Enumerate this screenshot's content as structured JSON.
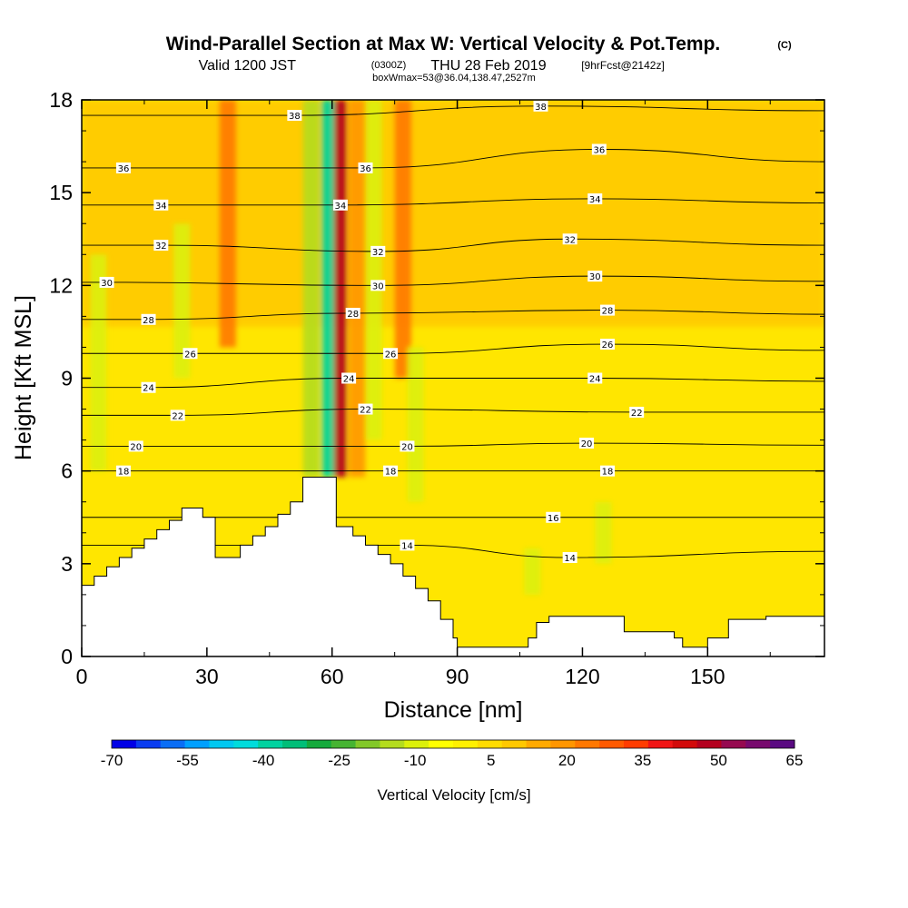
{
  "title": {
    "main": "Wind-Parallel Section at Max W: Vertical Velocity & Pot.Temp.",
    "main_tag": "(C)",
    "valid_prefix": "Valid 1200 JST",
    "valid_utc": "(0300Z)",
    "valid_date": "THU 28 Feb 2019",
    "fcst": "[9hrFcst@2142z]",
    "box": "boxWmax=53@36.04,138.47,2527m"
  },
  "chart_data": {
    "type": "heatmap",
    "xlabel": "Distance [nm]",
    "ylabel": "Height [Kft MSL]",
    "xlim": [
      0,
      178
    ],
    "ylim": [
      0,
      18
    ],
    "x_ticks": [
      0,
      30,
      60,
      90,
      120,
      150
    ],
    "y_ticks": [
      0,
      3,
      6,
      9,
      12,
      15,
      18
    ],
    "colorbar": {
      "title": "Vertical Velocity [cm/s]",
      "min": -70,
      "max": 65,
      "step": 5,
      "tick_labels": [
        "-70",
        "-55",
        "-40",
        "-25",
        "-10",
        "5",
        "20",
        "35",
        "50",
        "65"
      ],
      "colors": [
        "#0000e6",
        "#0a3cf0",
        "#0a6ef5",
        "#00a0ff",
        "#00c8f0",
        "#00dcdc",
        "#00d2a0",
        "#00be78",
        "#14aa3c",
        "#46b432",
        "#82c828",
        "#b4dc1e",
        "#dcf00a",
        "#ffff00",
        "#fff000",
        "#ffdc00",
        "#ffc800",
        "#ffaa00",
        "#ff9600",
        "#ff7800",
        "#ff5a00",
        "#ff3c00",
        "#f01414",
        "#d20a0a",
        "#b4001e",
        "#960a50",
        "#780a6e",
        "#5a0a82"
      ]
    },
    "vertical_velocity_features": [
      {
        "x": 59,
        "y0": 5.8,
        "y1": 18,
        "value": -40
      },
      {
        "x": 55,
        "y0": 5.8,
        "y1": 18,
        "value": -15
      },
      {
        "x": 62,
        "y0": 5.8,
        "y1": 18,
        "value": 50
      },
      {
        "x": 66,
        "y0": 5.8,
        "y1": 18,
        "value": 20
      },
      {
        "x": 70,
        "y0": 7,
        "y1": 18,
        "value": -10
      },
      {
        "x": 77,
        "y0": 9,
        "y1": 18,
        "value": 25
      },
      {
        "x": 35,
        "y0": 10,
        "y1": 18,
        "value": 25
      },
      {
        "x": 24,
        "y0": 9,
        "y1": 14,
        "value": -8
      },
      {
        "x": 4,
        "y0": 6,
        "y1": 13,
        "value": -8
      },
      {
        "x": 80,
        "y0": 5,
        "y1": 10,
        "value": -8
      },
      {
        "x": 125,
        "y0": 3,
        "y1": 5,
        "value": -8
      },
      {
        "x": 108,
        "y0": 2,
        "y1": 3.5,
        "value": -8
      }
    ],
    "theta_labels": [
      {
        "value": "38",
        "x": 51,
        "y": 17.5
      },
      {
        "value": "38",
        "x": 110,
        "y": 17.8
      },
      {
        "value": "36",
        "x": 10,
        "y": 15.8
      },
      {
        "value": "36",
        "x": 68,
        "y": 15.8
      },
      {
        "value": "36",
        "x": 124,
        "y": 16.4
      },
      {
        "value": "34",
        "x": 19,
        "y": 14.6
      },
      {
        "value": "34",
        "x": 62,
        "y": 14.6
      },
      {
        "value": "34",
        "x": 123,
        "y": 14.8
      },
      {
        "value": "32",
        "x": 19,
        "y": 13.3
      },
      {
        "value": "32",
        "x": 71,
        "y": 13.1
      },
      {
        "value": "32",
        "x": 117,
        "y": 13.5
      },
      {
        "value": "30",
        "x": 6,
        "y": 12.1
      },
      {
        "value": "30",
        "x": 71,
        "y": 12.0
      },
      {
        "value": "30",
        "x": 123,
        "y": 12.3
      },
      {
        "value": "28",
        "x": 16,
        "y": 10.9
      },
      {
        "value": "28",
        "x": 65,
        "y": 11.1
      },
      {
        "value": "28",
        "x": 126,
        "y": 11.2
      },
      {
        "value": "26",
        "x": 26,
        "y": 9.8
      },
      {
        "value": "26",
        "x": 74,
        "y": 9.8
      },
      {
        "value": "26",
        "x": 126,
        "y": 10.1
      },
      {
        "value": "24",
        "x": 16,
        "y": 8.7
      },
      {
        "value": "24",
        "x": 64,
        "y": 9.0
      },
      {
        "value": "24",
        "x": 123,
        "y": 9.0
      },
      {
        "value": "22",
        "x": 23,
        "y": 7.8
      },
      {
        "value": "22",
        "x": 68,
        "y": 8.0
      },
      {
        "value": "22",
        "x": 133,
        "y": 7.9
      },
      {
        "value": "20",
        "x": 13,
        "y": 6.8
      },
      {
        "value": "20",
        "x": 78,
        "y": 6.8
      },
      {
        "value": "20",
        "x": 121,
        "y": 6.9
      },
      {
        "value": "18",
        "x": 10,
        "y": 6.0
      },
      {
        "value": "18",
        "x": 74,
        "y": 6.0
      },
      {
        "value": "18",
        "x": 126,
        "y": 6.0
      },
      {
        "value": "16",
        "x": 113,
        "y": 4.5
      },
      {
        "value": "14",
        "x": 78,
        "y": 3.6
      },
      {
        "value": "14",
        "x": 117,
        "y": 3.2
      }
    ],
    "terrain": [
      [
        0,
        2.3
      ],
      [
        3,
        2.3
      ],
      [
        3,
        2.6
      ],
      [
        6,
        2.6
      ],
      [
        6,
        2.9
      ],
      [
        9,
        2.9
      ],
      [
        9,
        3.2
      ],
      [
        12,
        3.2
      ],
      [
        12,
        3.5
      ],
      [
        15,
        3.5
      ],
      [
        15,
        3.8
      ],
      [
        18,
        3.8
      ],
      [
        18,
        4.1
      ],
      [
        21,
        4.1
      ],
      [
        21,
        4.4
      ],
      [
        24,
        4.4
      ],
      [
        24,
        4.8
      ],
      [
        29,
        4.8
      ],
      [
        29,
        4.5
      ],
      [
        32,
        4.5
      ],
      [
        32,
        3.2
      ],
      [
        38,
        3.2
      ],
      [
        38,
        3.6
      ],
      [
        41,
        3.6
      ],
      [
        41,
        3.9
      ],
      [
        44,
        3.9
      ],
      [
        44,
        4.2
      ],
      [
        47,
        4.2
      ],
      [
        47,
        4.6
      ],
      [
        50,
        4.6
      ],
      [
        50,
        5.0
      ],
      [
        53,
        5.0
      ],
      [
        53,
        5.8
      ],
      [
        61,
        5.8
      ],
      [
        61,
        4.2
      ],
      [
        65,
        4.2
      ],
      [
        65,
        3.9
      ],
      [
        68,
        3.9
      ],
      [
        68,
        3.6
      ],
      [
        71,
        3.6
      ],
      [
        71,
        3.3
      ],
      [
        74,
        3.3
      ],
      [
        74,
        3.0
      ],
      [
        77,
        3.0
      ],
      [
        77,
        2.6
      ],
      [
        80,
        2.6
      ],
      [
        80,
        2.2
      ],
      [
        83,
        2.2
      ],
      [
        83,
        1.8
      ],
      [
        86,
        1.8
      ],
      [
        86,
        1.2
      ],
      [
        89,
        1.2
      ],
      [
        89,
        0.6
      ],
      [
        90,
        0.6
      ],
      [
        90,
        0.3
      ],
      [
        107,
        0.3
      ],
      [
        107,
        0.6
      ],
      [
        109,
        0.6
      ],
      [
        109,
        1.1
      ],
      [
        112,
        1.1
      ],
      [
        112,
        1.3
      ],
      [
        130,
        1.3
      ],
      [
        130,
        0.8
      ],
      [
        142,
        0.8
      ],
      [
        142,
        0.6
      ],
      [
        144,
        0.6
      ],
      [
        144,
        0.3
      ],
      [
        150,
        0.3
      ],
      [
        150,
        0.6
      ],
      [
        155,
        0.6
      ],
      [
        155,
        1.2
      ],
      [
        164,
        1.2
      ],
      [
        164,
        1.3
      ],
      [
        178,
        1.3
      ]
    ]
  }
}
